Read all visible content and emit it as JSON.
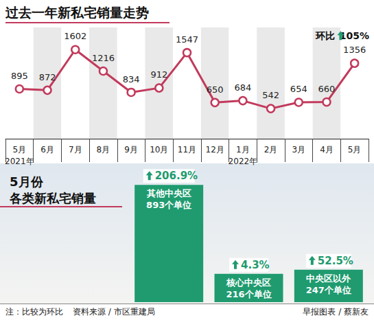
{
  "chart_data": [
    {
      "type": "line",
      "title": "过去一年新私宅销量走势",
      "categories": [
        "5月\n2021年",
        "6月",
        "7月",
        "8月",
        "9月",
        "10月",
        "11月",
        "12月",
        "1月\n2022年",
        "2月",
        "3月",
        "4月",
        "5月"
      ],
      "values": [
        895,
        872,
        1602,
        1216,
        834,
        912,
        1547,
        650,
        684,
        542,
        654,
        660,
        1356
      ],
      "color": "#c23a5c",
      "marker": "circle",
      "ylim": [
        0,
        2000
      ],
      "data_labels": true,
      "tick_labels": "x",
      "annotation": {
        "text": "环比",
        "label": "105%"
      }
    },
    {
      "type": "bar",
      "title": "5月份 各类新私宅销量",
      "categories": [
        "其他中央区",
        "核心中央区",
        "中央区以外"
      ],
      "values": [
        893,
        216,
        247
      ],
      "value_labels": [
        "893个单位",
        "216个单位",
        "247个单位"
      ],
      "change_labels": [
        "206.9%",
        "4.3%",
        "52.5%"
      ],
      "color": "#1f9b6f",
      "ylim": [
        0,
        900
      ],
      "data_labels": true,
      "tick_labels": false
    }
  ],
  "footer": {
    "note": "注：比较为环比",
    "source": "资料来源 / 市区重建局",
    "credit": "早报图表 / 蔡新友"
  }
}
